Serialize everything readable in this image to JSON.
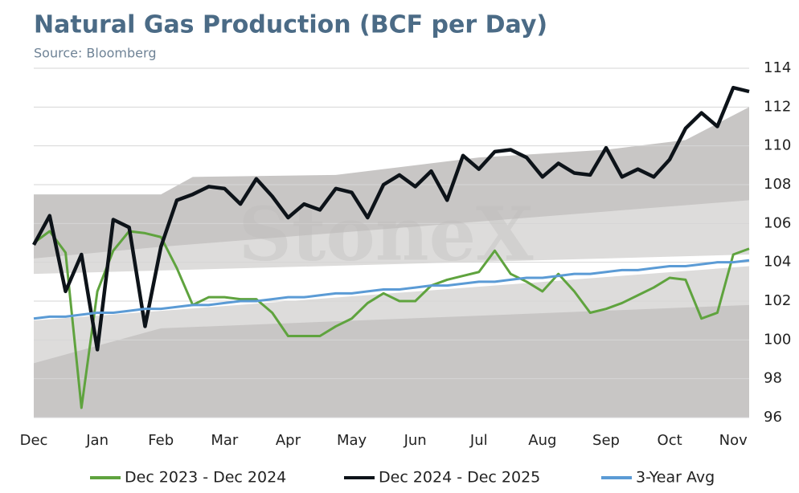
{
  "chart_data": {
    "type": "line",
    "title": "Natural Gas Production (BCF per Day)",
    "subtitle": "Source: Bloomberg",
    "watermark": "StoneX",
    "categories": [
      "Dec",
      null,
      null,
      null,
      "Jan",
      null,
      null,
      null,
      "Feb",
      null,
      null,
      null,
      "Mar",
      null,
      null,
      null,
      "Apr",
      null,
      null,
      null,
      "May",
      null,
      null,
      null,
      "Jun",
      null,
      null,
      null,
      "Jul",
      null,
      null,
      null,
      "Aug",
      null,
      null,
      null,
      "Sep",
      null,
      null,
      null,
      "Oct",
      null,
      null,
      null,
      "Nov",
      null
    ],
    "ylim": [
      96,
      114
    ],
    "yticks": [
      96,
      98,
      100,
      102,
      104,
      106,
      108,
      110,
      112,
      114
    ],
    "grid": true,
    "bands": [
      {
        "color": "#c8c6c5",
        "x": [
          0,
          8,
          10,
          19,
          28,
          36,
          41,
          45
        ],
        "lower": [
          96,
          96,
          96,
          96,
          96,
          96,
          96,
          96
        ],
        "upper": [
          107.5,
          107.5,
          108.4,
          108.5,
          109.4,
          109.8,
          110.3,
          112.0
        ]
      },
      {
        "color": "#dddcdb",
        "x": [
          0,
          8,
          45
        ],
        "lower": [
          98.8,
          100.6,
          101.8
        ],
        "upper": [
          104.2,
          104.8,
          107.2
        ]
      },
      {
        "color": "#ffffff",
        "x": [
          0,
          45
        ],
        "lower": [
          101.0,
          103.8
        ],
        "upper": [
          103.4,
          104.4
        ]
      }
    ],
    "series": [
      {
        "name": "Dec 2023 - Dec 2024",
        "color": "#5fa33e",
        "width": 3,
        "values": [
          105.0,
          105.6,
          104.5,
          96.5,
          102.5,
          104.6,
          105.6,
          105.5,
          105.3,
          103.7,
          101.8,
          102.2,
          102.2,
          102.1,
          102.1,
          101.4,
          100.2,
          100.2,
          100.2,
          100.7,
          101.1,
          101.9,
          102.4,
          102.0,
          102.0,
          102.8,
          103.1,
          103.3,
          103.5,
          104.6,
          103.4,
          103.0,
          102.5,
          103.4,
          102.5,
          101.4,
          101.6,
          101.9,
          102.3,
          102.7,
          103.2,
          103.1,
          101.1,
          101.4,
          104.4,
          104.7
        ]
      },
      {
        "name": "Dec 2024 - Dec 2025",
        "color": "#0d1319",
        "width": 4.5,
        "values": [
          104.9,
          106.4,
          102.5,
          104.4,
          99.5,
          106.2,
          105.8,
          100.7,
          104.8,
          107.2,
          107.5,
          107.9,
          107.8,
          107.0,
          108.3,
          107.4,
          106.3,
          107.0,
          106.7,
          107.8,
          107.6,
          106.3,
          108.0,
          108.5,
          107.9,
          108.7,
          107.2,
          109.5,
          108.8,
          109.7,
          109.8,
          109.4,
          108.4,
          109.1,
          108.6,
          108.5,
          109.9,
          108.4,
          108.8,
          108.4,
          109.3,
          110.9,
          111.7,
          111.0,
          113.0,
          112.8
        ]
      },
      {
        "name": "3-Year Avg",
        "color": "#5b9bd5",
        "width": 3,
        "values": [
          101.1,
          101.2,
          101.2,
          101.3,
          101.4,
          101.4,
          101.5,
          101.6,
          101.6,
          101.7,
          101.8,
          101.8,
          101.9,
          102.0,
          102.0,
          102.1,
          102.2,
          102.2,
          102.3,
          102.4,
          102.4,
          102.5,
          102.6,
          102.6,
          102.7,
          102.8,
          102.8,
          102.9,
          103.0,
          103.0,
          103.1,
          103.2,
          103.2,
          103.3,
          103.4,
          103.4,
          103.5,
          103.6,
          103.6,
          103.7,
          103.8,
          103.8,
          103.9,
          104.0,
          104.0,
          104.1
        ]
      }
    ]
  }
}
